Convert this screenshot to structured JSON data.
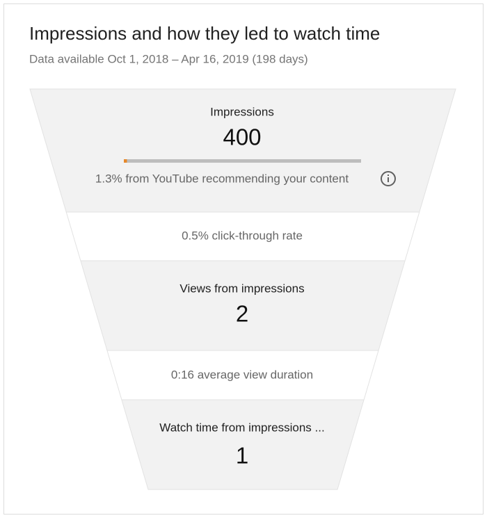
{
  "header": {
    "title": "Impressions and how they led to watch time",
    "subtitle": "Data available Oct 1, 2018 – Apr 16, 2019 (198 days)"
  },
  "funnel": {
    "impressions": {
      "label": "Impressions",
      "value": "400",
      "recommended_share": 1.3,
      "recommended_text": "1.3% from YouTube recommending your content"
    },
    "click_through": "0.5% click-through rate",
    "views": {
      "label": "Views from impressions",
      "value": "2"
    },
    "view_duration": "0:16 average view duration",
    "watch_time": {
      "label": "Watch time from impressions ...",
      "value": "1"
    }
  }
}
